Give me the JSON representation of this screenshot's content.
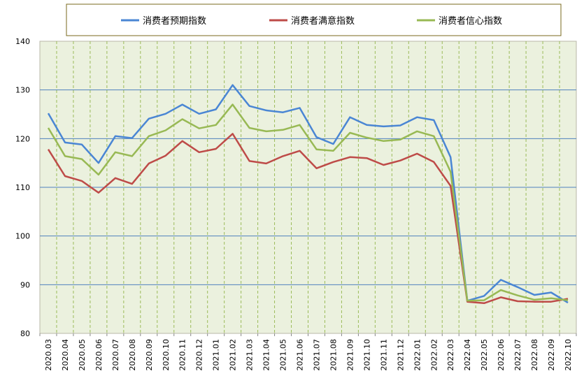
{
  "chart_data": {
    "type": "line",
    "title": "",
    "xlabel": "",
    "ylabel": "",
    "ylim": [
      80,
      140
    ],
    "yticks": [
      80,
      90,
      100,
      110,
      120,
      130,
      140
    ],
    "grid": true,
    "legend_position": "top",
    "categories": [
      "2020.03",
      "2020.04",
      "2020.05",
      "2020.06",
      "2020.07",
      "2020.08",
      "2020.09",
      "2020.10",
      "2020.11",
      "2020.12",
      "2021.01",
      "2021.02",
      "2021.03",
      "2021.04",
      "2021.05",
      "2021.06",
      "2021.07",
      "2021.08",
      "2021.09",
      "2021.10",
      "2021.11",
      "2021.12",
      "2022.01",
      "2022.02",
      "2022.03",
      "2022.04",
      "2022.05",
      "2022.06",
      "2022.07",
      "2022.08",
      "2022.09",
      "2022.10"
    ],
    "series": [
      {
        "name": "消费者预期指数",
        "color": "#4a86d4",
        "values": [
          125.2,
          119.2,
          118.8,
          115.0,
          120.5,
          120.1,
          124.1,
          125.1,
          127.0,
          125.1,
          126.0,
          131.0,
          126.7,
          125.8,
          125.4,
          126.3,
          120.3,
          118.9,
          124.4,
          122.8,
          122.5,
          122.7,
          124.4,
          123.8,
          116.2,
          86.7,
          87.7,
          91.0,
          89.5,
          87.9,
          88.4,
          86.3
        ]
      },
      {
        "name": "消费者满意指数",
        "color": "#be4b48",
        "values": [
          117.8,
          112.3,
          111.3,
          108.9,
          111.9,
          110.7,
          114.9,
          116.5,
          119.5,
          117.2,
          117.9,
          121.0,
          115.4,
          114.9,
          116.4,
          117.5,
          113.9,
          115.2,
          116.2,
          116.0,
          114.6,
          115.5,
          116.9,
          115.2,
          110.3,
          86.5,
          86.2,
          87.4,
          86.6,
          86.5,
          86.5,
          87.1
        ]
      },
      {
        "name": "消费者信心指数",
        "color": "#98b954",
        "values": [
          122.2,
          116.4,
          115.8,
          112.6,
          117.2,
          116.4,
          120.5,
          121.7,
          124.0,
          122.1,
          122.8,
          127.0,
          122.2,
          121.5,
          121.8,
          122.8,
          117.8,
          117.5,
          121.2,
          120.2,
          119.5,
          119.8,
          121.5,
          120.5,
          113.2,
          86.7,
          86.8,
          88.9,
          87.8,
          86.9,
          87.2,
          86.8
        ]
      }
    ]
  }
}
